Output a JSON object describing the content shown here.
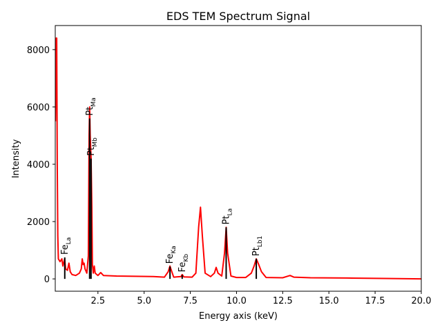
{
  "chart_data": {
    "type": "line",
    "title": "EDS TEM Spectrum Signal",
    "xlabel": "Energy axis (keV)",
    "ylabel": "Intensity",
    "xlim": [
      0.19,
      20.0
    ],
    "ylim": [
      -430,
      8840
    ],
    "xticks": [
      2.5,
      5.0,
      7.5,
      10.0,
      12.5,
      15.0,
      17.5,
      20.0
    ],
    "xtick_labels": [
      "2.5",
      "5.0",
      "7.5",
      "10.0",
      "12.5",
      "15.0",
      "17.5",
      "20.0"
    ],
    "yticks": [
      0,
      2000,
      4000,
      6000,
      8000
    ],
    "ytick_labels": [
      "0",
      "2000",
      "4000",
      "6000",
      "8000"
    ],
    "grid": false,
    "series": [
      {
        "color": "#ff0000",
        "x": [
          0.2,
          0.24,
          0.27,
          0.3,
          0.33,
          0.36,
          0.45,
          0.55,
          0.6,
          0.7,
          0.75,
          0.85,
          0.93,
          1.0,
          1.1,
          1.3,
          1.5,
          1.6,
          1.65,
          1.7,
          1.75,
          1.8,
          1.9,
          1.98,
          2.02,
          2.05,
          2.08,
          2.13,
          2.17,
          2.2,
          2.25,
          2.3,
          2.35,
          2.5,
          2.65,
          2.8,
          3.5,
          4.5,
          5.5,
          6.1,
          6.3,
          6.4,
          6.5,
          6.6,
          7.0,
          7.06,
          7.15,
          7.6,
          7.8,
          7.95,
          8.05,
          8.15,
          8.3,
          8.6,
          8.8,
          8.9,
          9.0,
          9.2,
          9.35,
          9.44,
          9.52,
          9.7,
          10.0,
          10.5,
          10.8,
          10.95,
          11.07,
          11.2,
          11.35,
          11.6,
          12.5,
          12.9,
          13.1,
          14,
          16,
          18,
          20
        ],
        "y": [
          5500,
          8400,
          8400,
          4000,
          1500,
          700,
          600,
          700,
          450,
          700,
          350,
          300,
          550,
          250,
          150,
          120,
          200,
          350,
          700,
          500,
          550,
          350,
          200,
          800,
          5000,
          6000,
          5000,
          4200,
          2500,
          500,
          200,
          450,
          200,
          120,
          220,
          120,
          100,
          90,
          80,
          60,
          250,
          450,
          250,
          60,
          80,
          150,
          70,
          60,
          200,
          1800,
          2500,
          1500,
          200,
          80,
          200,
          400,
          200,
          100,
          900,
          1800,
          900,
          100,
          50,
          50,
          200,
          450,
          700,
          500,
          250,
          50,
          40,
          120,
          60,
          40,
          30,
          15,
          0
        ]
      }
    ],
    "markers": [
      {
        "element": "Fe",
        "line": "La",
        "energy": 0.705,
        "intensity": 750
      },
      {
        "element": "Pt",
        "line": "Ma",
        "energy": 2.05,
        "intensity": 5600
      },
      {
        "element": "Pt",
        "line": "Mb",
        "energy": 2.127,
        "intensity": 4200
      },
      {
        "element": "Fe",
        "line": "Ka",
        "energy": 6.4,
        "intensity": 430
      },
      {
        "element": "Fe",
        "line": "Kb",
        "energy": 7.06,
        "intensity": 140
      },
      {
        "element": "Pt",
        "line": "La",
        "energy": 9.44,
        "intensity": 1800
      },
      {
        "element": "Pt",
        "line": "Lb1",
        "energy": 11.07,
        "intensity": 700
      }
    ]
  }
}
